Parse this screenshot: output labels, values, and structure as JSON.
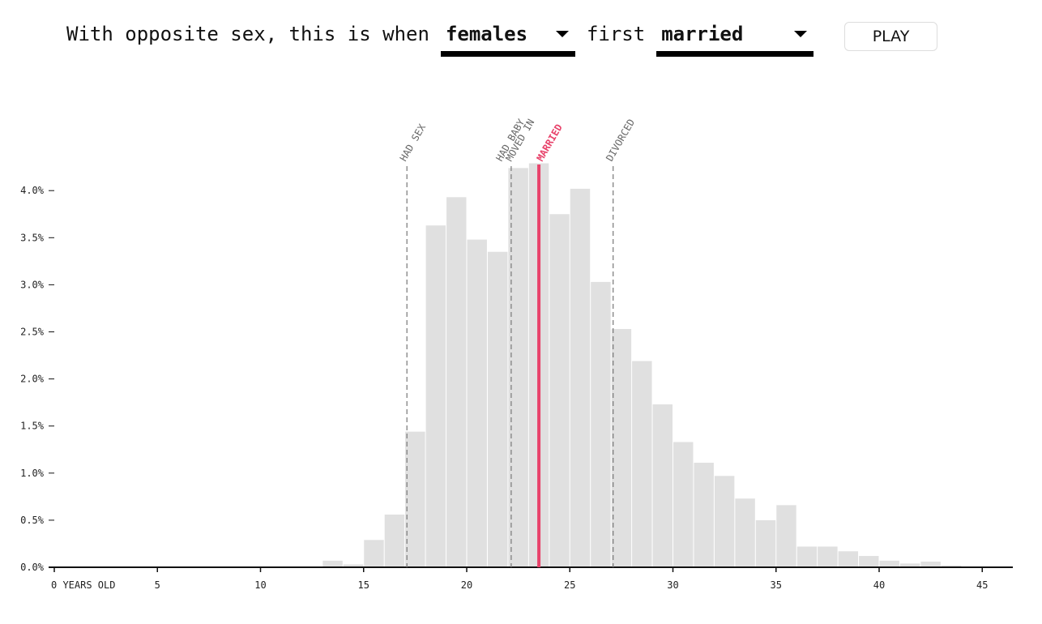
{
  "controls": {
    "prefix": "With opposite sex, this is when",
    "sex_value": "females",
    "middle": "first",
    "event_value": "married",
    "play_label": "PLAY"
  },
  "colors": {
    "bar": "#e0e0e0",
    "highlight": "#e8436b",
    "marker_line": "#777777",
    "axis": "#111111"
  },
  "chart_data": {
    "type": "bar",
    "title": "",
    "xlabel": "YEARS OLD",
    "ylabel": "",
    "xlim": [
      0,
      46
    ],
    "ylim": [
      0,
      4.3
    ],
    "x_ticks": [
      0,
      5,
      10,
      15,
      20,
      25,
      30,
      35,
      40,
      45
    ],
    "x_tick_labels": [
      "0 YEARS OLD",
      "5",
      "10",
      "15",
      "20",
      "25",
      "30",
      "35",
      "40",
      "45"
    ],
    "y_ticks": [
      0,
      0.5,
      1.0,
      1.5,
      2.0,
      2.5,
      3.0,
      3.5,
      4.0
    ],
    "y_tick_labels": [
      "0.0%",
      "0.5%",
      "1.0%",
      "1.5%",
      "2.0%",
      "2.5%",
      "3.0%",
      "3.5%",
      "4.0%"
    ],
    "ages": [
      13,
      14,
      15,
      16,
      17,
      18,
      19,
      20,
      21,
      22,
      23,
      24,
      25,
      26,
      27,
      28,
      29,
      30,
      31,
      32,
      33,
      34,
      35,
      36,
      37,
      38,
      39,
      40,
      41,
      42,
      43
    ],
    "values": [
      0.07,
      0.03,
      0.29,
      0.56,
      1.44,
      3.63,
      3.93,
      3.48,
      3.35,
      4.24,
      4.29,
      3.75,
      4.02,
      3.03,
      2.53,
      2.19,
      1.73,
      1.33,
      1.11,
      0.97,
      0.73,
      0.5,
      0.66,
      0.22,
      0.22,
      0.17,
      0.12,
      0.07,
      0.04,
      0.06,
      0.02
    ],
    "markers": [
      {
        "label": "HAD SEX",
        "age": 17,
        "highlight": false
      },
      {
        "label": "HAD BABY",
        "age": 22,
        "highlight": false
      },
      {
        "label": "MOVED IN",
        "age": 22,
        "highlight": false
      },
      {
        "label": "MARRIED",
        "age": 23,
        "highlight": true
      },
      {
        "label": "DIVORCED",
        "age": 27,
        "highlight": false
      }
    ]
  }
}
